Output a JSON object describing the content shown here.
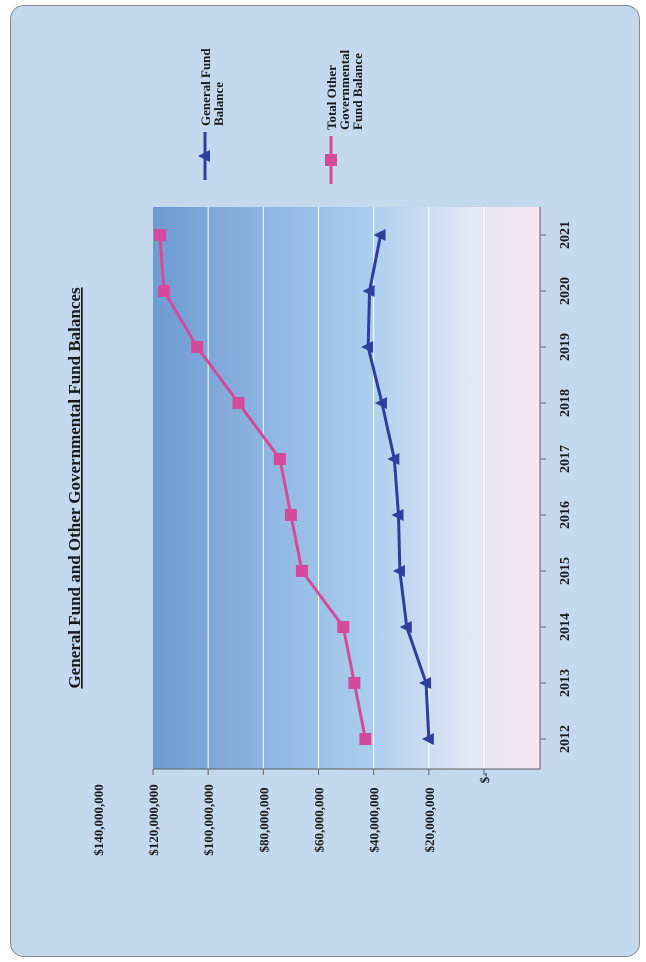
{
  "chart_data": {
    "type": "line",
    "title": "General Fund and Other Governmental Fund Balances",
    "xlabel": "",
    "ylabel": "",
    "categories": [
      "2012",
      "2013",
      "2014",
      "2015",
      "2016",
      "2017",
      "2018",
      "2019",
      "2020",
      "2021"
    ],
    "y_ticks": [
      "$-",
      "$20,000,000",
      "$40,000,000",
      "$60,000,000",
      "$80,000,000",
      "$100,000,000",
      "$120,000,000",
      "$140,000,000"
    ],
    "ylim": [
      0,
      140000000
    ],
    "grid": true,
    "legend_position": "right",
    "series": [
      {
        "name": "General Fund Balance",
        "color": "#2e3e9c",
        "marker": "triangle",
        "values": [
          20000000,
          21000000,
          28000000,
          30500000,
          31000000,
          32500000,
          37000000,
          42000000,
          41500000,
          37500000
        ]
      },
      {
        "name": "Total Other Governmental Fund Balance",
        "color": "#d64a9c",
        "marker": "square",
        "values": [
          43000000,
          47000000,
          51000000,
          66000000,
          70000000,
          74000000,
          89000000,
          104000000,
          116000000,
          117500000
        ]
      }
    ],
    "legend": [
      [
        "General Fund",
        "Balance"
      ],
      [
        "Total Other",
        "Governmental",
        "Fund Balance"
      ]
    ]
  }
}
